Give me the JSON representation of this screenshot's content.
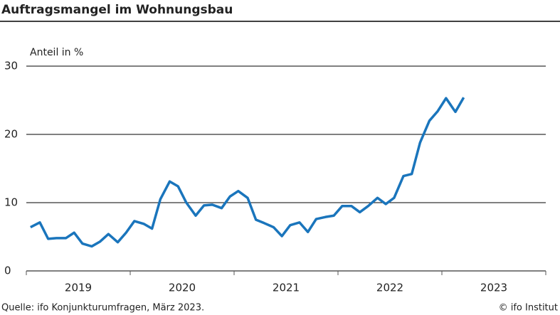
{
  "chart_data": {
    "type": "line",
    "title": "Auftragsmangel im Wohnungsbau",
    "y_label": "Anteil in %",
    "source": "Quelle: ifo Konjunkturumfragen, März 2023.",
    "credit": "© ifo Institut",
    "x_labels": [
      "2019",
      "2020",
      "2021",
      "2022",
      "2023"
    ],
    "xticks": [
      2019,
      2020,
      2021,
      2022,
      2023,
      2024
    ],
    "xlim": [
      2019,
      2024
    ],
    "ylim": [
      0,
      30
    ],
    "yticks": [
      0,
      10,
      20,
      30
    ],
    "grid": true,
    "x": [
      2019.04,
      2019.13,
      2019.21,
      2019.29,
      2019.38,
      2019.46,
      2019.54,
      2019.63,
      2019.71,
      2019.79,
      2019.88,
      2019.96,
      2020.04,
      2020.13,
      2020.21,
      2020.29,
      2020.38,
      2020.46,
      2020.54,
      2020.63,
      2020.71,
      2020.79,
      2020.88,
      2020.96,
      2021.04,
      2021.13,
      2021.21,
      2021.29,
      2021.38,
      2021.46,
      2021.54,
      2021.63,
      2021.71,
      2021.79,
      2021.88,
      2021.96,
      2022.04,
      2022.13,
      2022.21,
      2022.29,
      2022.38,
      2022.46,
      2022.54,
      2022.63,
      2022.71,
      2022.79,
      2022.88,
      2022.96,
      2023.04,
      2023.13,
      2023.21
    ],
    "series": [
      {
        "color": "#1a75bc",
        "values": [
          6.4,
          7.1,
          4.7,
          4.8,
          4.8,
          5.6,
          4.0,
          3.6,
          4.3,
          5.4,
          4.2,
          5.6,
          7.3,
          6.9,
          6.2,
          10.5,
          13.1,
          12.4,
          10.0,
          8.1,
          9.6,
          9.7,
          9.2,
          10.9,
          11.7,
          10.7,
          7.5,
          7.0,
          6.4,
          5.1,
          6.7,
          7.1,
          5.7,
          7.6,
          7.9,
          8.1,
          9.5,
          9.5,
          8.6,
          9.5,
          10.7,
          9.8,
          10.7,
          13.9,
          14.2,
          18.8,
          22.0,
          23.4,
          25.3,
          23.3,
          25.4
        ]
      }
    ]
  }
}
